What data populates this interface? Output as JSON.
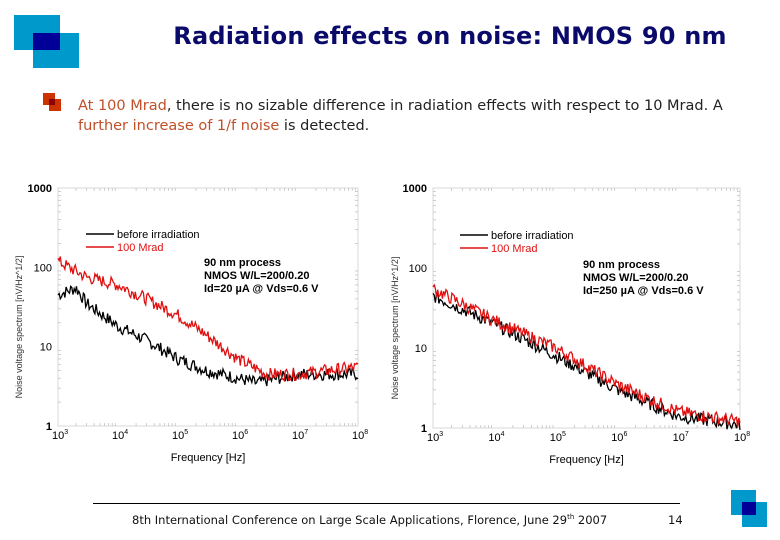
{
  "slide": {
    "title": "Radiation effects on noise: NMOS 90 nm",
    "bullet": {
      "parts": [
        {
          "text": "At 100 Mrad",
          "highlight": true
        },
        {
          "text": ", there is no sizable difference in radiation effects with respect to 10 Mrad.  A ",
          "highlight": false
        },
        {
          "text": "further increase of 1/f noise",
          "highlight": true
        },
        {
          "text": " is detected.",
          "highlight": false
        }
      ]
    },
    "footer": {
      "text_before_sup": "8th International Conference on Large Scale Applications, Florence, June 29",
      "sup": "th",
      "text_after_sup": " 2007",
      "page_number": "14"
    },
    "colors": {
      "title": "#0a0a6a",
      "highlight": "#c0502a",
      "logo_light": "#0099cc",
      "logo_dark": "#000099",
      "bullet_light": "#cc3300",
      "bullet_dark": "#8b0000",
      "series_before": "#000000",
      "series_after": "#e01010"
    }
  },
  "chart_data": [
    {
      "type": "line",
      "title": "",
      "xlabel": "Frequency [Hz]",
      "ylabel": "Noise voltage spectrum [nV/Hz^1/2]",
      "xscale": "log",
      "yscale": "log",
      "xlim": [
        1000,
        100000000
      ],
      "ylim": [
        1,
        1000
      ],
      "xtick_labels": [
        "10^3",
        "10^4",
        "10^5",
        "10^6",
        "10^7",
        "10^8"
      ],
      "ytick_labels": [
        "1",
        "10",
        "100",
        "1000"
      ],
      "legend": [
        "before irradiation",
        "100 Mrad"
      ],
      "legend_position": "upper-left",
      "annotation": [
        "90 nm process",
        "NMOS W/L=200/0.20",
        "Id=20 µA @ Vds=0.6 V"
      ],
      "series": [
        {
          "name": "before irradiation",
          "x": [
            1000,
            2000,
            3000,
            10000,
            30000,
            100000,
            300000,
            1000000,
            2000000,
            10000000,
            100000000
          ],
          "y": [
            45,
            55,
            35,
            18,
            12,
            7,
            5,
            4,
            3.5,
            4.5,
            4.5
          ]
        },
        {
          "name": "100 Mrad",
          "x": [
            1000,
            3000,
            10000,
            30000,
            100000,
            300000,
            1000000,
            3000000,
            10000000,
            30000000,
            100000000
          ],
          "y": [
            120,
            75,
            60,
            40,
            25,
            14,
            7,
            4.5,
            4.5,
            5,
            5.5
          ]
        }
      ]
    },
    {
      "type": "line",
      "title": "",
      "xlabel": "Frequency [Hz]",
      "ylabel": "Noise voltage spectrum [nV/Hz^1/2]",
      "xscale": "log",
      "yscale": "log",
      "xlim": [
        1000,
        100000000
      ],
      "ylim": [
        1,
        1000
      ],
      "xtick_labels": [
        "10^3",
        "10^4",
        "10^5",
        "10^6",
        "10^7",
        "10^8"
      ],
      "ytick_labels": [
        "1",
        "10",
        "100",
        "1000"
      ],
      "legend": [
        "before irradiation",
        "100 Mrad"
      ],
      "legend_position": "upper-left",
      "annotation": [
        "90 nm process",
        "NMOS W/L=200/0.20",
        "Id=250 µA @ Vds=0.6 V"
      ],
      "series": [
        {
          "name": "before irradiation",
          "x": [
            1000,
            10000,
            100000,
            1000000,
            10000000,
            100000000
          ],
          "y": [
            45,
            20,
            8,
            3,
            1.4,
            1.1
          ]
        },
        {
          "name": "100 Mrad",
          "x": [
            1000,
            10000,
            100000,
            1000000,
            10000000,
            100000000
          ],
          "y": [
            55,
            22,
            10,
            3.5,
            1.6,
            1.2
          ]
        }
      ]
    }
  ]
}
